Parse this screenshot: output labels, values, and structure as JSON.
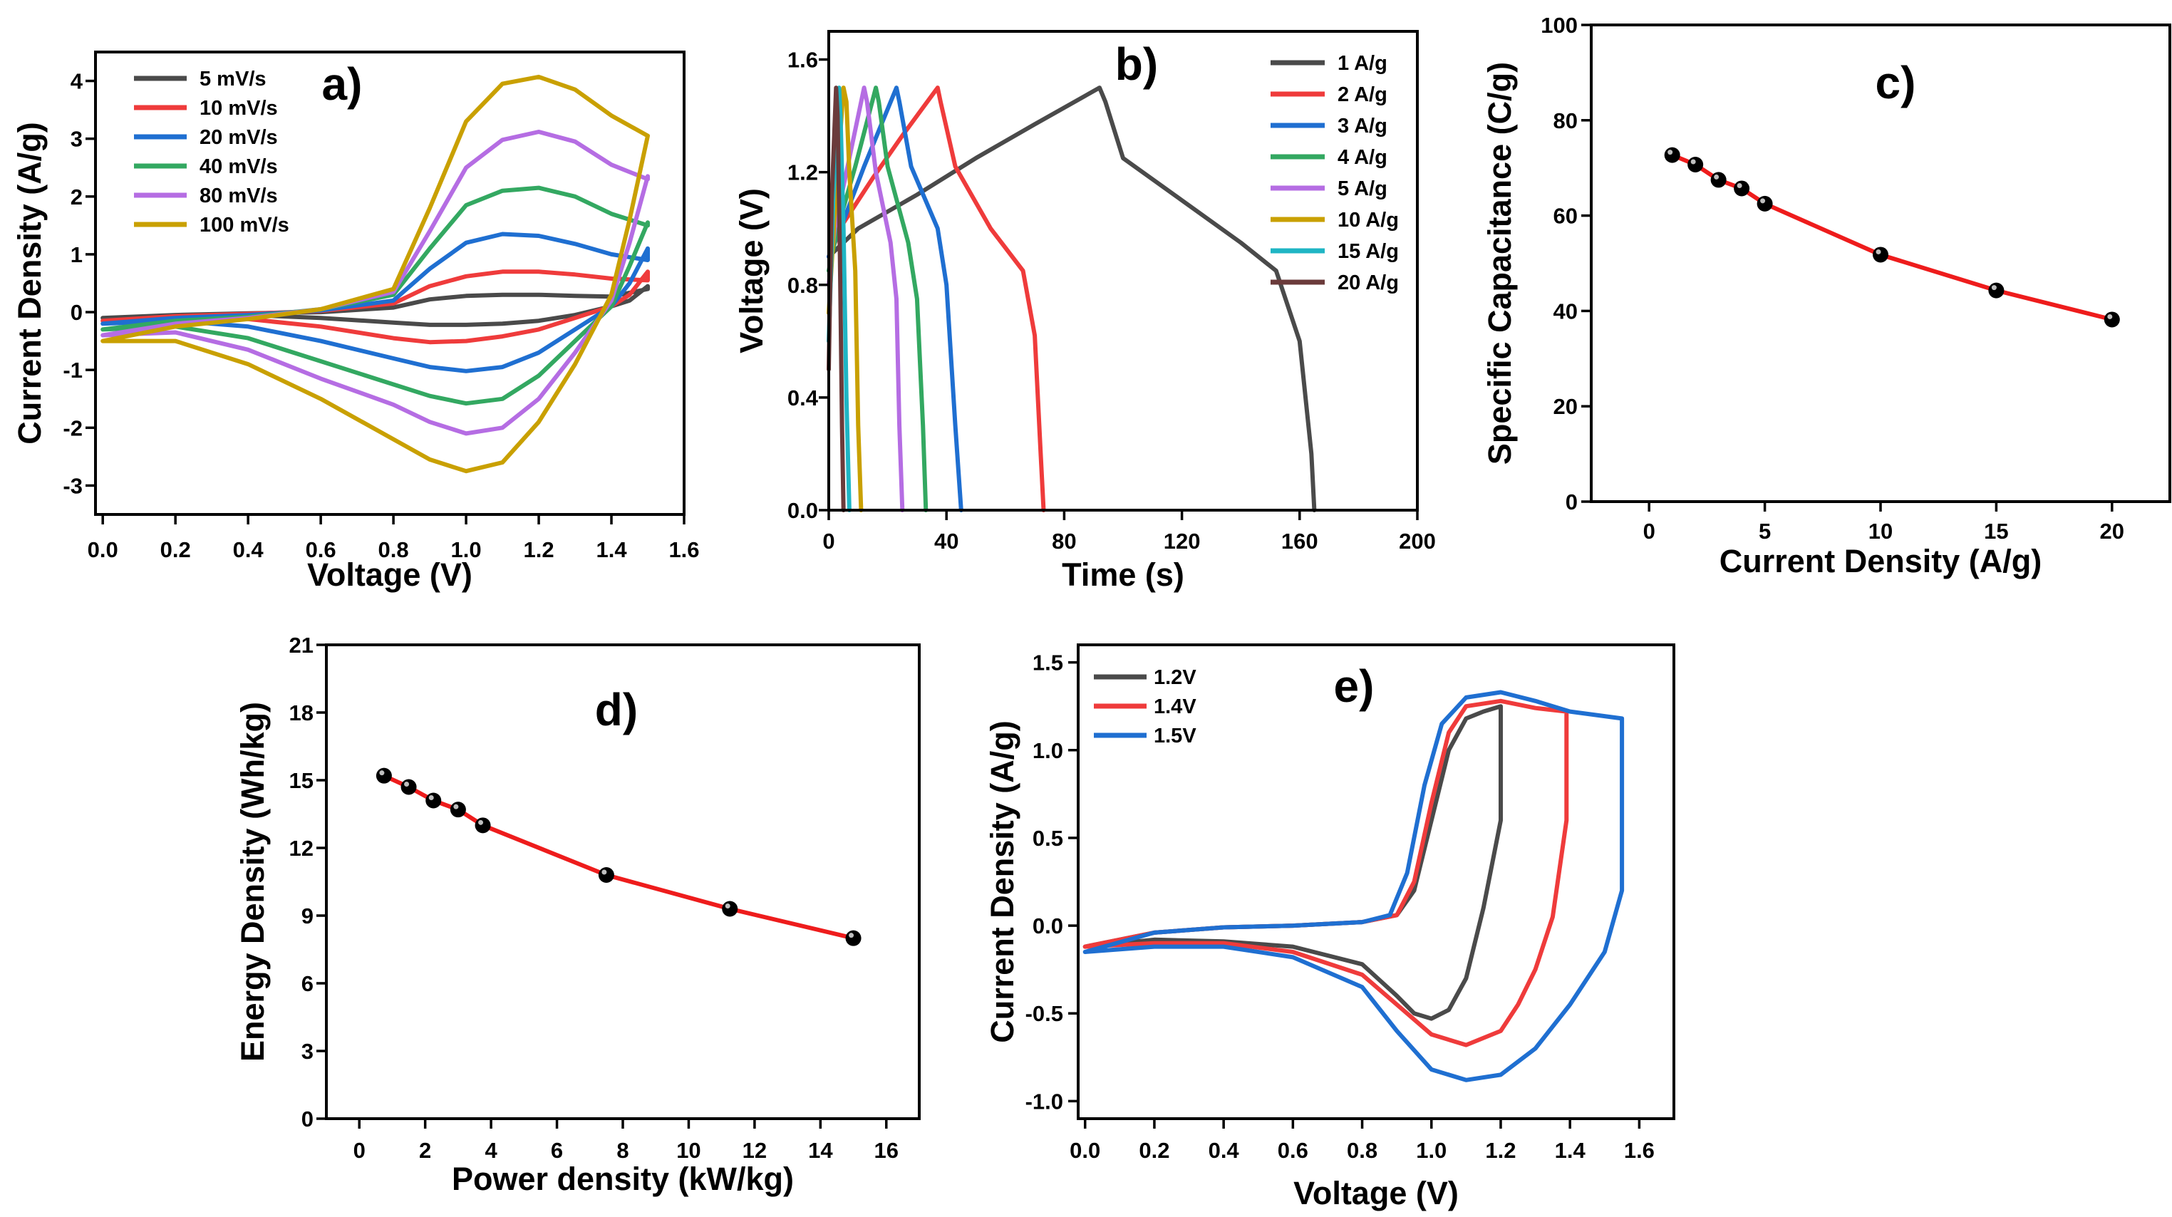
{
  "chart_data": [
    {
      "id": "a",
      "type": "line",
      "title": "a)",
      "xlabel": "Voltage (V)",
      "ylabel": "Current Density (A/g)",
      "xlim": [
        -0.02,
        1.6
      ],
      "ylim": [
        -3.5,
        4.5
      ],
      "xticks": [
        0.0,
        0.2,
        0.4,
        0.6,
        0.8,
        1.0,
        1.2,
        1.4,
        1.6
      ],
      "xtick_labels": [
        "0.0",
        "0.2",
        "0.4",
        "0.6",
        "0.8",
        "1.0",
        "1.2",
        "1.4",
        "1.6"
      ],
      "yticks": [
        -3,
        -2,
        -1,
        0,
        1,
        2,
        3,
        4
      ],
      "ytick_labels": [
        "-3",
        "-2",
        "-1",
        "0",
        "1",
        "2",
        "3",
        "4"
      ],
      "legend_position": "top-left",
      "series": [
        {
          "name": "5 mV/s",
          "color": "#4a4a4a",
          "x": [
            0.0,
            0.2,
            0.4,
            0.6,
            0.8,
            0.9,
            1.0,
            1.1,
            1.2,
            1.3,
            1.4,
            1.5,
            1.5,
            1.45,
            1.4,
            1.3,
            1.2,
            1.1,
            1.0,
            0.9,
            0.8,
            0.6,
            0.4,
            0.2,
            0.0
          ],
          "y": [
            -0.1,
            -0.05,
            -0.02,
            0.0,
            0.08,
            0.22,
            0.28,
            0.3,
            0.3,
            0.28,
            0.27,
            0.4,
            0.45,
            0.2,
            0.1,
            -0.05,
            -0.15,
            -0.2,
            -0.22,
            -0.22,
            -0.18,
            -0.1,
            -0.05,
            -0.05,
            -0.1
          ]
        },
        {
          "name": "10 mV/s",
          "color": "#ef3b3b",
          "x": [
            0.0,
            0.2,
            0.4,
            0.6,
            0.8,
            0.9,
            1.0,
            1.1,
            1.2,
            1.3,
            1.4,
            1.5,
            1.5,
            1.45,
            1.4,
            1.3,
            1.2,
            1.1,
            1.0,
            0.9,
            0.8,
            0.6,
            0.4,
            0.2,
            0.0
          ],
          "y": [
            -0.15,
            -0.07,
            -0.03,
            0.02,
            0.15,
            0.45,
            0.62,
            0.7,
            0.7,
            0.65,
            0.58,
            0.55,
            0.7,
            0.3,
            0.1,
            -0.1,
            -0.3,
            -0.42,
            -0.5,
            -0.52,
            -0.45,
            -0.25,
            -0.12,
            -0.1,
            -0.15
          ]
        },
        {
          "name": "20 mV/s",
          "color": "#1f6fd1",
          "x": [
            0.0,
            0.2,
            0.4,
            0.6,
            0.8,
            0.9,
            1.0,
            1.1,
            1.2,
            1.3,
            1.4,
            1.5,
            1.5,
            1.45,
            1.4,
            1.3,
            1.2,
            1.1,
            1.0,
            0.9,
            0.8,
            0.6,
            0.4,
            0.2,
            0.0
          ],
          "y": [
            -0.2,
            -0.1,
            -0.05,
            0.03,
            0.2,
            0.75,
            1.2,
            1.35,
            1.32,
            1.18,
            1.0,
            0.9,
            1.1,
            0.5,
            0.1,
            -0.3,
            -0.7,
            -0.95,
            -1.02,
            -0.95,
            -0.8,
            -0.5,
            -0.25,
            -0.15,
            -0.2
          ]
        },
        {
          "name": "40 mV/s",
          "color": "#33a861",
          "x": [
            0.0,
            0.2,
            0.4,
            0.6,
            0.8,
            0.9,
            1.0,
            1.1,
            1.2,
            1.3,
            1.4,
            1.5,
            1.5,
            1.45,
            1.4,
            1.3,
            1.2,
            1.1,
            1.0,
            0.9,
            0.8,
            0.6,
            0.4,
            0.2,
            0.0
          ],
          "y": [
            -0.3,
            -0.15,
            -0.08,
            0.05,
            0.3,
            1.1,
            1.85,
            2.1,
            2.15,
            2.0,
            1.7,
            1.5,
            1.55,
            0.8,
            0.1,
            -0.5,
            -1.1,
            -1.5,
            -1.58,
            -1.45,
            -1.25,
            -0.85,
            -0.45,
            -0.25,
            -0.3
          ]
        },
        {
          "name": "80 mV/s",
          "color": "#b56de3",
          "x": [
            0.0,
            0.2,
            0.4,
            0.6,
            0.8,
            0.9,
            1.0,
            1.1,
            1.2,
            1.3,
            1.4,
            1.5,
            1.5,
            1.45,
            1.4,
            1.3,
            1.2,
            1.1,
            1.0,
            0.9,
            0.8,
            0.6,
            0.4,
            0.2,
            0.0
          ],
          "y": [
            -0.4,
            -0.2,
            -0.1,
            0.05,
            0.35,
            1.4,
            2.5,
            2.98,
            3.12,
            2.95,
            2.55,
            2.3,
            2.35,
            1.2,
            0.2,
            -0.7,
            -1.5,
            -2.0,
            -2.1,
            -1.9,
            -1.6,
            -1.15,
            -0.65,
            -0.35,
            -0.4
          ]
        },
        {
          "name": "100 mV/s",
          "color": "#c9a000",
          "x": [
            0.0,
            0.2,
            0.4,
            0.6,
            0.8,
            0.9,
            1.0,
            1.1,
            1.2,
            1.3,
            1.4,
            1.5,
            1.5,
            1.45,
            1.4,
            1.3,
            1.2,
            1.1,
            1.0,
            0.9,
            0.8,
            0.6,
            0.4,
            0.2,
            0.0
          ],
          "y": [
            -0.5,
            -0.25,
            -0.12,
            0.05,
            0.4,
            1.8,
            3.3,
            3.95,
            4.07,
            3.85,
            3.4,
            3.05,
            3.05,
            1.6,
            0.3,
            -0.9,
            -1.9,
            -2.6,
            -2.75,
            -2.55,
            -2.2,
            -1.5,
            -0.9,
            -0.5,
            -0.5
          ]
        }
      ]
    },
    {
      "id": "b",
      "type": "line",
      "title": "b)",
      "xlabel": "Time (s)",
      "ylabel": "Voltage (V)",
      "xlim": [
        0,
        200
      ],
      "ylim": [
        0,
        1.7
      ],
      "xticks": [
        0,
        40,
        80,
        120,
        160,
        200
      ],
      "xtick_labels": [
        "0",
        "40",
        "80",
        "120",
        "160",
        "200"
      ],
      "yticks": [
        0.0,
        0.4,
        0.8,
        1.2,
        1.6
      ],
      "ytick_labels": [
        "0.0",
        "0.4",
        "0.8",
        "1.2",
        "1.6"
      ],
      "legend_position": "top-right",
      "series": [
        {
          "name": "1 A/g",
          "color": "#4a4a4a",
          "x": [
            0,
            10,
            30,
            50,
            70,
            92,
            94,
            100,
            120,
            140,
            152,
            160,
            164,
            165
          ],
          "y": [
            0.9,
            1.0,
            1.12,
            1.25,
            1.37,
            1.5,
            1.45,
            1.25,
            1.1,
            0.95,
            0.85,
            0.6,
            0.2,
            0.0
          ]
        },
        {
          "name": "2 A/g",
          "color": "#ef3b3b",
          "x": [
            0,
            5,
            15,
            25,
            37,
            38,
            43,
            55,
            66,
            70,
            72,
            73
          ],
          "y": [
            0.9,
            1.02,
            1.18,
            1.33,
            1.5,
            1.45,
            1.22,
            1.0,
            0.85,
            0.62,
            0.2,
            0.0
          ]
        },
        {
          "name": "3 A/g",
          "color": "#1f6fd1",
          "x": [
            0,
            4,
            12,
            23,
            24,
            28,
            37,
            40,
            43,
            45
          ],
          "y": [
            0.9,
            1.0,
            1.22,
            1.5,
            1.45,
            1.22,
            1.0,
            0.8,
            0.3,
            0.0
          ]
        },
        {
          "name": "4 A/g",
          "color": "#33a861",
          "x": [
            0,
            3,
            9,
            16,
            17,
            20,
            27,
            30,
            32,
            33
          ],
          "y": [
            0.85,
            1.0,
            1.22,
            1.5,
            1.45,
            1.22,
            0.95,
            0.75,
            0.3,
            0.0
          ]
        },
        {
          "name": "5 A/g",
          "color": "#b56de3",
          "x": [
            0,
            2,
            7,
            12,
            13,
            16,
            21,
            23,
            24,
            25
          ],
          "y": [
            0.8,
            1.0,
            1.25,
            1.5,
            1.45,
            1.2,
            0.95,
            0.75,
            0.3,
            0.0
          ]
        },
        {
          "name": "10 A/g",
          "color": "#c9a000",
          "x": [
            0,
            2,
            5,
            6,
            7,
            9,
            10,
            11
          ],
          "y": [
            0.7,
            1.05,
            1.5,
            1.45,
            1.2,
            0.85,
            0.3,
            0.0
          ]
        },
        {
          "name": "15 A/g",
          "color": "#1fb5c4",
          "x": [
            0,
            1.5,
            3.5,
            4,
            5,
            6,
            7
          ],
          "y": [
            0.6,
            1.1,
            1.5,
            1.4,
            1.0,
            0.4,
            0.0
          ]
        },
        {
          "name": "20 A/g",
          "color": "#6b3b3b",
          "x": [
            0,
            1,
            2.5,
            3,
            3.8,
            4.5,
            5
          ],
          "y": [
            0.5,
            1.1,
            1.5,
            1.4,
            0.9,
            0.3,
            0.0
          ]
        }
      ]
    },
    {
      "id": "c",
      "type": "scatter",
      "title": "c)",
      "xlabel": "Current Density (A/g)",
      "ylabel": "Specific Capacitance (C/g)",
      "xlim": [
        -2.5,
        22.5
      ],
      "ylim": [
        0,
        100
      ],
      "xticks": [
        0,
        5,
        10,
        15,
        20
      ],
      "xtick_labels": [
        "0",
        "5",
        "10",
        "15",
        "20"
      ],
      "yticks": [
        0,
        20,
        40,
        60,
        80,
        100
      ],
      "ytick_labels": [
        "0",
        "20",
        "40",
        "60",
        "80",
        "100"
      ],
      "x": [
        1,
        2,
        3,
        4,
        5,
        10,
        15,
        20
      ],
      "y": [
        72.7,
        70.7,
        67.5,
        65.7,
        62.5,
        51.8,
        44.3,
        38.2
      ],
      "line_color": "#ee1c1c",
      "marker_color": "#000000"
    },
    {
      "id": "d",
      "type": "scatter",
      "title": "d)",
      "xlabel": "Power density (kW/kg)",
      "ylabel": "Energy Density (Wh/kg)",
      "xlim": [
        -1,
        17
      ],
      "ylim": [
        0,
        21
      ],
      "xticks": [
        0,
        2,
        4,
        6,
        8,
        10,
        12,
        14,
        16
      ],
      "xtick_labels": [
        "0",
        "2",
        "4",
        "6",
        "8",
        "10",
        "12",
        "14",
        "16"
      ],
      "yticks": [
        0,
        3,
        6,
        9,
        12,
        15,
        18,
        21
      ],
      "ytick_labels": [
        "0",
        "3",
        "6",
        "9",
        "12",
        "15",
        "18",
        "21"
      ],
      "x": [
        0.75,
        1.5,
        2.25,
        3.0,
        3.75,
        7.5,
        11.25,
        15.0
      ],
      "y": [
        15.2,
        14.7,
        14.1,
        13.7,
        13.0,
        10.8,
        9.3,
        8.0
      ],
      "line_color": "#ee1c1c",
      "marker_color": "#000000"
    },
    {
      "id": "e",
      "type": "line",
      "title": "e)",
      "xlabel": "Voltage (V)",
      "ylabel": "Current Density (A/g)",
      "xlim": [
        -0.02,
        1.7
      ],
      "ylim": [
        -1.1,
        1.6
      ],
      "xticks": [
        0.0,
        0.2,
        0.4,
        0.6,
        0.8,
        1.0,
        1.2,
        1.4,
        1.6
      ],
      "xtick_labels": [
        "0.0",
        "0.2",
        "0.4",
        "0.6",
        "0.8",
        "1.0",
        "1.2",
        "1.4",
        "1.6"
      ],
      "yticks": [
        -1.0,
        -0.5,
        0.0,
        0.5,
        1.0,
        1.5
      ],
      "ytick_labels": [
        "-1.0",
        "-0.5",
        "0.0",
        "0.5",
        "1.0",
        "1.5"
      ],
      "legend_position": "top-left",
      "series": [
        {
          "name": "1.2V",
          "color": "#4a4a4a",
          "x": [
            0.0,
            0.2,
            0.4,
            0.6,
            0.8,
            0.9,
            0.95,
            1.0,
            1.05,
            1.1,
            1.15,
            1.2,
            1.2,
            1.15,
            1.1,
            1.05,
            1.0,
            0.95,
            0.9,
            0.8,
            0.6,
            0.4,
            0.2,
            0.0
          ],
          "y": [
            -0.12,
            -0.04,
            -0.01,
            0.0,
            0.02,
            0.06,
            0.2,
            0.6,
            1.0,
            1.18,
            1.22,
            1.25,
            0.6,
            0.1,
            -0.3,
            -0.48,
            -0.53,
            -0.5,
            -0.4,
            -0.22,
            -0.12,
            -0.09,
            -0.08,
            -0.12
          ]
        },
        {
          "name": "1.4V",
          "color": "#ef3b3b",
          "x": [
            0.0,
            0.2,
            0.4,
            0.6,
            0.8,
            0.9,
            0.95,
            1.0,
            1.05,
            1.1,
            1.2,
            1.3,
            1.39,
            1.39,
            1.35,
            1.3,
            1.25,
            1.2,
            1.1,
            1.0,
            0.9,
            0.8,
            0.6,
            0.4,
            0.2,
            0.0
          ],
          "y": [
            -0.12,
            -0.04,
            -0.01,
            0.0,
            0.02,
            0.06,
            0.25,
            0.7,
            1.1,
            1.25,
            1.28,
            1.24,
            1.22,
            0.6,
            0.05,
            -0.25,
            -0.45,
            -0.6,
            -0.68,
            -0.62,
            -0.45,
            -0.28,
            -0.15,
            -0.1,
            -0.1,
            -0.12
          ]
        },
        {
          "name": "1.5V",
          "color": "#1f6fd1",
          "x": [
            0.0,
            0.2,
            0.4,
            0.6,
            0.8,
            0.88,
            0.93,
            0.98,
            1.03,
            1.1,
            1.2,
            1.3,
            1.4,
            1.55,
            1.55,
            1.5,
            1.4,
            1.3,
            1.2,
            1.1,
            1.0,
            0.9,
            0.8,
            0.6,
            0.4,
            0.2,
            0.0
          ],
          "y": [
            -0.15,
            -0.04,
            -0.01,
            0.0,
            0.02,
            0.06,
            0.3,
            0.8,
            1.15,
            1.3,
            1.33,
            1.28,
            1.22,
            1.18,
            0.2,
            -0.15,
            -0.45,
            -0.7,
            -0.85,
            -0.88,
            -0.82,
            -0.6,
            -0.35,
            -0.18,
            -0.12,
            -0.12,
            -0.15
          ]
        }
      ]
    }
  ]
}
